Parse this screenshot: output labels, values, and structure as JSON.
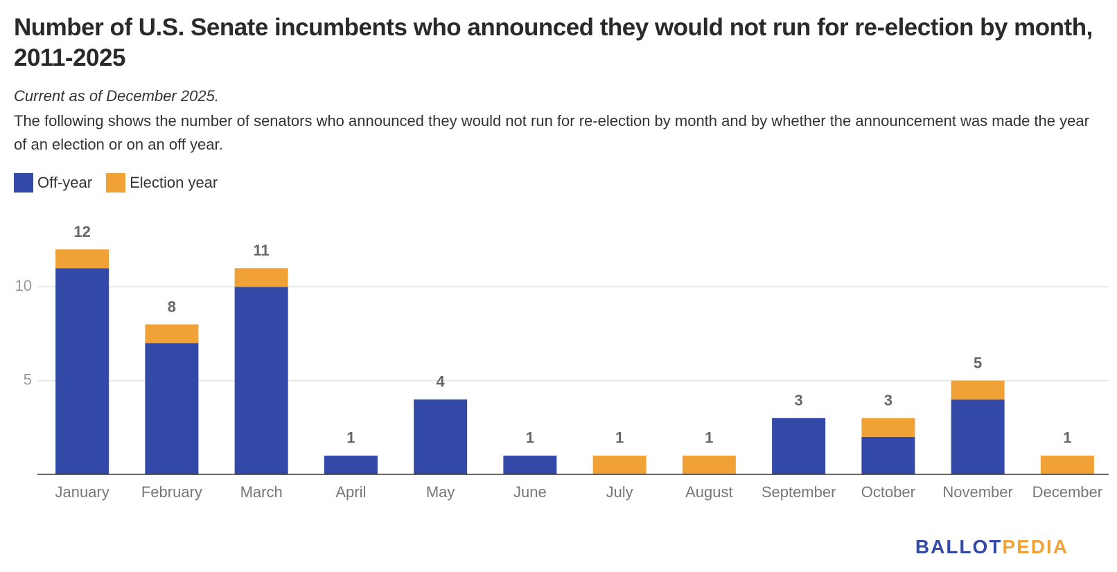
{
  "chart_data": {
    "type": "stacked_bar",
    "title": "Number of U.S. Senate incumbents who announced they would not run for re-election by month, 2011-2025",
    "subtitle": "Current as of December 2025.",
    "description": "The following shows the number of senators who announced they would not run for re-election by month and by whether the announcement was made the year of an election or on an off year.",
    "categories": [
      "January",
      "February",
      "March",
      "April",
      "May",
      "June",
      "July",
      "August",
      "September",
      "October",
      "November",
      "December"
    ],
    "series": [
      {
        "name": "Off-year",
        "color": "#3349a8",
        "values": [
          11,
          7,
          10,
          1,
          4,
          1,
          0,
          0,
          3,
          2,
          4,
          0
        ]
      },
      {
        "name": "Election year",
        "color": "#f0a236",
        "values": [
          1,
          1,
          1,
          0,
          0,
          0,
          1,
          1,
          0,
          1,
          1,
          1
        ]
      }
    ],
    "total_labels": [
      12,
      8,
      11,
      1,
      4,
      1,
      1,
      1,
      3,
      3,
      5,
      1
    ],
    "ylim": [
      0,
      13
    ],
    "yticks": [
      5,
      10
    ],
    "grid": true
  },
  "branding": {
    "part1": "BALLOT",
    "part2": "PEDIA"
  }
}
